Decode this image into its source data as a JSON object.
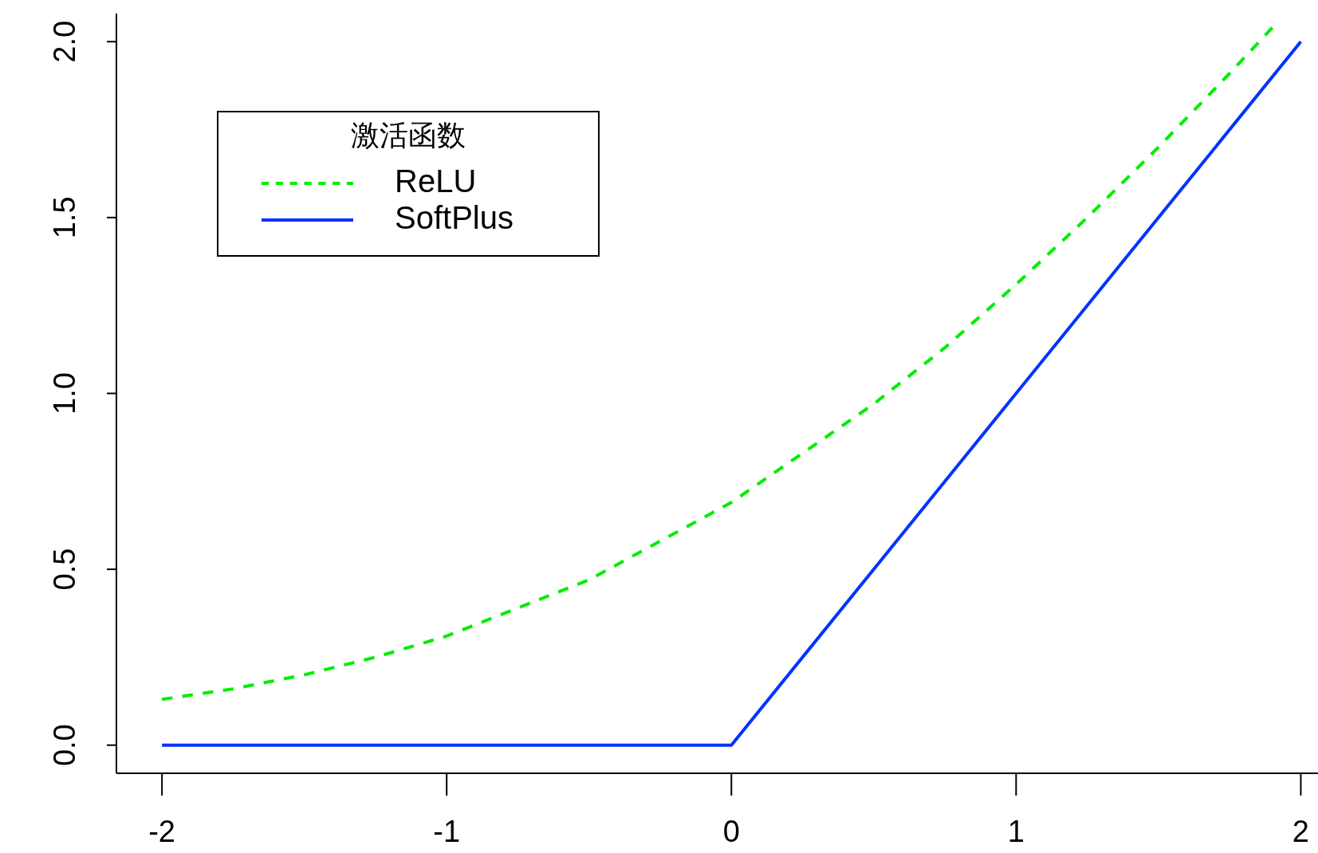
{
  "chart_data": {
    "type": "line",
    "xlim": [
      -2.16,
      2.08
    ],
    "ylim": [
      -0.08,
      2.08
    ],
    "xticks": [
      -2,
      -1,
      0,
      1,
      2
    ],
    "yticks": [
      {
        "value": 0,
        "label": "0.0"
      },
      {
        "value": 0.5,
        "label": "0.5"
      },
      {
        "value": 1,
        "label": "1.0"
      },
      {
        "value": 1.5,
        "label": "1.5"
      },
      {
        "value": 2,
        "label": "2.0"
      }
    ],
    "legend_title": "激活函数",
    "legend": "top left",
    "grid": false,
    "marker": "none",
    "series": [
      {
        "name": "ReLU",
        "color": "#00ee00",
        "line_style": "dashed",
        "x": [
          -2,
          -1.75,
          -1.5,
          -1.25,
          -1,
          -0.75,
          -0.5,
          -0.25,
          0,
          0.25,
          0.5,
          0.75,
          1,
          1.25,
          1.5,
          1.75,
          1.9
        ],
        "values": [
          0.13,
          0.16,
          0.2,
          0.25,
          0.31,
          0.39,
          0.47,
          0.58,
          0.69,
          0.83,
          0.97,
          1.13,
          1.31,
          1.5,
          1.7,
          1.91,
          2.04
        ]
      },
      {
        "name": "SoftPlus",
        "color": "#0033ff",
        "line_style": "solid",
        "x": [
          -2,
          0,
          2
        ],
        "values": [
          0,
          0,
          2
        ]
      }
    ]
  }
}
